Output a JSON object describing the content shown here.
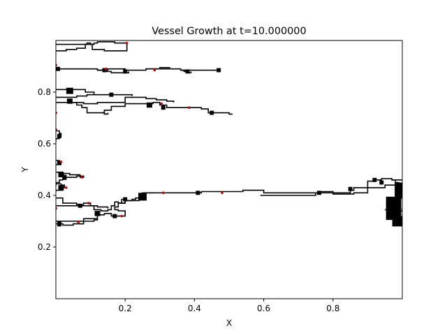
{
  "chart_data": {
    "type": "line",
    "title": "Vessel Growth at t=10.000000",
    "xlabel": "X",
    "ylabel": "Y",
    "xlim": [
      0.0,
      1.0
    ],
    "ylim": [
      0.0,
      1.0
    ],
    "xticks": [
      0.2,
      0.4,
      0.6,
      0.8
    ],
    "xtick_labels": [
      "0.2",
      "0.4",
      "0.6",
      "0.8"
    ],
    "yticks": [
      0.2,
      0.4,
      0.6,
      0.8
    ],
    "ytick_labels": [
      "0.2",
      "0.4",
      "0.6",
      "0.8"
    ],
    "grid": false,
    "colors": {
      "vessel": "#000000",
      "tip": "#cc0000"
    },
    "vessels": [
      [
        [
          0.0,
          0.985
        ],
        [
          0.08,
          0.985
        ],
        [
          0.09,
          0.99
        ],
        [
          0.1,
          0.985
        ],
        [
          0.11,
          0.99
        ],
        [
          0.12,
          0.995
        ],
        [
          0.16,
          0.995
        ],
        [
          0.17,
          0.99
        ],
        [
          0.205,
          0.99
        ]
      ],
      [
        [
          0.0,
          0.96
        ],
        [
          0.03,
          0.965
        ],
        [
          0.06,
          0.97
        ],
        [
          0.085,
          0.985
        ],
        [
          0.1,
          0.985
        ],
        [
          0.105,
          0.965
        ],
        [
          0.14,
          0.96
        ],
        [
          0.205,
          0.96
        ],
        [
          0.205,
          0.99
        ]
      ],
      [
        [
          0.0,
          0.89
        ],
        [
          0.05,
          0.89
        ],
        [
          0.09,
          0.89
        ],
        [
          0.12,
          0.885
        ],
        [
          0.15,
          0.89
        ],
        [
          0.2,
          0.885
        ],
        [
          0.26,
          0.89
        ],
        [
          0.3,
          0.895
        ],
        [
          0.33,
          0.895
        ]
      ],
      [
        [
          0.12,
          0.885
        ],
        [
          0.14,
          0.88
        ],
        [
          0.16,
          0.875
        ],
        [
          0.19,
          0.875
        ],
        [
          0.21,
          0.88
        ]
      ],
      [
        [
          0.26,
          0.89
        ],
        [
          0.3,
          0.89
        ],
        [
          0.33,
          0.89
        ],
        [
          0.36,
          0.885
        ],
        [
          0.4,
          0.885
        ],
        [
          0.42,
          0.885
        ],
        [
          0.43,
          0.885
        ],
        [
          0.465,
          0.885
        ],
        [
          0.47,
          0.88
        ]
      ],
      [
        [
          0.36,
          0.885
        ],
        [
          0.37,
          0.88
        ],
        [
          0.38,
          0.875
        ],
        [
          0.39,
          0.88
        ]
      ],
      [
        [
          0.0,
          0.81
        ],
        [
          0.03,
          0.81
        ],
        [
          0.07,
          0.81
        ],
        [
          0.085,
          0.8
        ],
        [
          0.1,
          0.8
        ],
        [
          0.11,
          0.79
        ],
        [
          0.15,
          0.79
        ],
        [
          0.2,
          0.79
        ],
        [
          0.22,
          0.79
        ],
        [
          0.22,
          0.785
        ]
      ],
      [
        [
          0.0,
          0.78
        ],
        [
          0.04,
          0.78
        ],
        [
          0.06,
          0.785
        ],
        [
          0.09,
          0.79
        ],
        [
          0.11,
          0.79
        ]
      ],
      [
        [
          0.0,
          0.76
        ],
        [
          0.04,
          0.76
        ],
        [
          0.08,
          0.755
        ],
        [
          0.12,
          0.76
        ],
        [
          0.2,
          0.78
        ],
        [
          0.24,
          0.78
        ],
        [
          0.26,
          0.775
        ],
        [
          0.29,
          0.77
        ],
        [
          0.32,
          0.765
        ],
        [
          0.34,
          0.76
        ]
      ],
      [
        [
          0.04,
          0.76
        ],
        [
          0.06,
          0.75
        ],
        [
          0.075,
          0.74
        ],
        [
          0.09,
          0.72
        ],
        [
          0.13,
          0.72
        ],
        [
          0.14,
          0.715
        ],
        [
          0.15,
          0.72
        ]
      ],
      [
        [
          0.13,
          0.72
        ],
        [
          0.14,
          0.73
        ],
        [
          0.16,
          0.745
        ],
        [
          0.2,
          0.755
        ],
        [
          0.25,
          0.755
        ],
        [
          0.28,
          0.76
        ],
        [
          0.3,
          0.75
        ],
        [
          0.32,
          0.74
        ],
        [
          0.38,
          0.74
        ],
        [
          0.42,
          0.735
        ],
        [
          0.44,
          0.72
        ],
        [
          0.48,
          0.72
        ],
        [
          0.5,
          0.715
        ],
        [
          0.51,
          0.715
        ]
      ],
      [
        [
          0.0,
          0.65
        ],
        [
          0.01,
          0.64
        ],
        [
          0.015,
          0.63
        ],
        [
          0.01,
          0.62
        ],
        [
          0.0,
          0.61
        ]
      ],
      [
        [
          0.0,
          0.535
        ],
        [
          0.01,
          0.53
        ],
        [
          0.015,
          0.525
        ],
        [
          0.01,
          0.52
        ],
        [
          0.0,
          0.515
        ]
      ],
      [
        [
          0.0,
          0.49
        ],
        [
          0.02,
          0.485
        ],
        [
          0.04,
          0.48
        ],
        [
          0.07,
          0.47
        ],
        [
          0.08,
          0.475
        ],
        [
          0.06,
          0.47
        ],
        [
          0.02,
          0.46
        ],
        [
          0.01,
          0.45
        ],
        [
          0.0,
          0.44
        ]
      ],
      [
        [
          0.0,
          0.445
        ],
        [
          0.015,
          0.44
        ],
        [
          0.025,
          0.43
        ],
        [
          0.02,
          0.42
        ],
        [
          0.0,
          0.415
        ]
      ],
      [
        [
          0.0,
          0.39
        ],
        [
          0.02,
          0.37
        ],
        [
          0.06,
          0.36
        ],
        [
          0.09,
          0.36
        ],
        [
          0.12,
          0.355
        ],
        [
          0.14,
          0.355
        ],
        [
          0.15,
          0.35
        ]
      ],
      [
        [
          0.0,
          0.36
        ],
        [
          0.03,
          0.36
        ],
        [
          0.06,
          0.365
        ],
        [
          0.08,
          0.37
        ],
        [
          0.1,
          0.36
        ],
        [
          0.11,
          0.345
        ],
        [
          0.13,
          0.34
        ],
        [
          0.14,
          0.34
        ],
        [
          0.15,
          0.345
        ],
        [
          0.16,
          0.36
        ],
        [
          0.17,
          0.375
        ],
        [
          0.18,
          0.37
        ],
        [
          0.2,
          0.38
        ],
        [
          0.22,
          0.385
        ],
        [
          0.23,
          0.39
        ],
        [
          0.25,
          0.4
        ],
        [
          0.26,
          0.41
        ],
        [
          0.28,
          0.41
        ]
      ],
      [
        [
          0.0,
          0.3
        ],
        [
          0.03,
          0.3
        ],
        [
          0.06,
          0.3
        ],
        [
          0.08,
          0.31
        ],
        [
          0.1,
          0.31
        ],
        [
          0.12,
          0.325
        ],
        [
          0.14,
          0.33
        ],
        [
          0.16,
          0.32
        ],
        [
          0.18,
          0.32
        ],
        [
          0.2,
          0.33
        ],
        [
          0.2,
          0.34
        ],
        [
          0.18,
          0.345
        ],
        [
          0.17,
          0.355
        ],
        [
          0.18,
          0.37
        ],
        [
          0.19,
          0.385
        ],
        [
          0.2,
          0.39
        ]
      ],
      [
        [
          0.0,
          0.29
        ],
        [
          0.02,
          0.285
        ],
        [
          0.05,
          0.29
        ],
        [
          0.08,
          0.3
        ],
        [
          0.11,
          0.305
        ],
        [
          0.12,
          0.31
        ]
      ],
      [
        [
          0.18,
          0.37
        ],
        [
          0.2,
          0.38
        ],
        [
          0.24,
          0.39
        ],
        [
          0.26,
          0.4
        ],
        [
          0.25,
          0.41
        ],
        [
          0.27,
          0.41
        ],
        [
          0.3,
          0.41
        ],
        [
          0.33,
          0.41
        ],
        [
          0.36,
          0.41
        ],
        [
          0.4,
          0.41
        ],
        [
          0.42,
          0.415
        ],
        [
          0.46,
          0.415
        ],
        [
          0.5,
          0.415
        ],
        [
          0.54,
          0.42
        ],
        [
          0.6,
          0.42
        ],
        [
          0.6,
          0.41
        ],
        [
          0.66,
          0.41
        ],
        [
          0.7,
          0.41
        ],
        [
          0.74,
          0.41
        ],
        [
          0.76,
          0.415
        ],
        [
          0.8,
          0.41
        ],
        [
          0.84,
          0.41
        ],
        [
          0.85,
          0.42
        ],
        [
          0.86,
          0.43
        ],
        [
          0.9,
          0.455
        ],
        [
          0.92,
          0.46
        ],
        [
          0.94,
          0.465
        ],
        [
          0.97,
          0.46
        ],
        [
          1.0,
          0.46
        ]
      ],
      [
        [
          0.59,
          0.4
        ],
        [
          0.64,
          0.4
        ],
        [
          0.7,
          0.4
        ],
        [
          0.75,
          0.41
        ],
        [
          0.8,
          0.405
        ],
        [
          0.86,
          0.41
        ],
        [
          0.9,
          0.43
        ],
        [
          0.95,
          0.44
        ],
        [
          1.0,
          0.44
        ]
      ],
      [
        [
          0.97,
          0.46
        ],
        [
          0.98,
          0.45
        ],
        [
          0.99,
          0.44
        ],
        [
          1.0,
          0.43
        ]
      ],
      [
        [
          0.96,
          0.36
        ],
        [
          0.97,
          0.37
        ],
        [
          0.98,
          0.38
        ],
        [
          0.99,
          0.39
        ],
        [
          1.0,
          0.4
        ]
      ],
      [
        [
          0.96,
          0.33
        ],
        [
          0.97,
          0.32
        ],
        [
          0.98,
          0.31
        ],
        [
          0.99,
          0.3
        ],
        [
          1.0,
          0.29
        ]
      ],
      [
        [
          0.95,
          0.345
        ],
        [
          0.97,
          0.35
        ],
        [
          0.99,
          0.34
        ],
        [
          1.0,
          0.35
        ]
      ]
    ],
    "clusters": [
      [
        0.975,
        0.35,
        0.022,
        0.045
      ],
      [
        0.99,
        0.42,
        0.012,
        0.03
      ],
      [
        0.985,
        0.3,
        0.014,
        0.02
      ],
      [
        0.04,
        0.805,
        0.01,
        0.012
      ],
      [
        0.16,
        0.79,
        0.006,
        0.008
      ],
      [
        0.04,
        0.765,
        0.008,
        0.01
      ],
      [
        0.27,
        0.75,
        0.008,
        0.01
      ],
      [
        0.31,
        0.74,
        0.006,
        0.008
      ],
      [
        0.45,
        0.72,
        0.006,
        0.008
      ],
      [
        0.006,
        0.89,
        0.006,
        0.008
      ],
      [
        0.14,
        0.885,
        0.006,
        0.008
      ],
      [
        0.2,
        0.88,
        0.006,
        0.008
      ],
      [
        0.38,
        0.88,
        0.006,
        0.008
      ],
      [
        0.47,
        0.885,
        0.006,
        0.008
      ],
      [
        0.01,
        0.63,
        0.006,
        0.008
      ],
      [
        0.01,
        0.525,
        0.006,
        0.008
      ],
      [
        0.015,
        0.48,
        0.008,
        0.01
      ],
      [
        0.015,
        0.43,
        0.008,
        0.01
      ],
      [
        0.025,
        0.47,
        0.006,
        0.01
      ],
      [
        0.25,
        0.395,
        0.012,
        0.015
      ],
      [
        0.2,
        0.385,
        0.006,
        0.008
      ],
      [
        0.41,
        0.41,
        0.006,
        0.008
      ],
      [
        0.76,
        0.41,
        0.006,
        0.008
      ],
      [
        0.85,
        0.425,
        0.006,
        0.008
      ],
      [
        0.07,
        0.36,
        0.006,
        0.008
      ],
      [
        0.01,
        0.29,
        0.006,
        0.01
      ],
      [
        0.12,
        0.33,
        0.008,
        0.01
      ],
      [
        0.17,
        0.32,
        0.006,
        0.008
      ],
      [
        0.92,
        0.46,
        0.006,
        0.008
      ],
      [
        0.94,
        0.45,
        0.006,
        0.008
      ]
    ],
    "tips": [
      [
        0.205,
        0.99
      ],
      [
        0.0,
        0.905
      ],
      [
        0.145,
        0.89
      ],
      [
        0.285,
        0.885
      ],
      [
        0.385,
        0.74
      ],
      [
        0.305,
        0.755
      ],
      [
        0.0,
        0.72
      ],
      [
        0.0,
        0.655
      ],
      [
        0.015,
        0.53
      ],
      [
        0.075,
        0.47
      ],
      [
        0.095,
        0.37
      ],
      [
        0.0,
        0.35
      ],
      [
        0.19,
        0.32
      ],
      [
        0.065,
        0.295
      ],
      [
        0.48,
        0.41
      ],
      [
        0.31,
        0.41
      ],
      [
        0.03,
        0.43
      ]
    ]
  }
}
